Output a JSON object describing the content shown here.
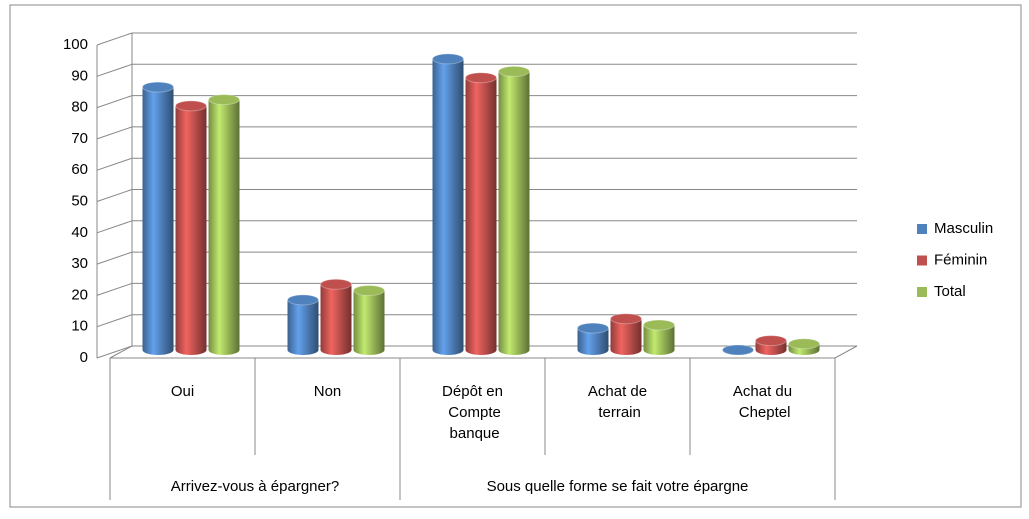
{
  "chart_data": {
    "type": "bar3d",
    "category_groups": [
      {
        "name": "Arrivez-vous à épargner?",
        "categories": [
          "Oui",
          "Non"
        ]
      },
      {
        "name": "Sous quelle forme se fait votre épargne",
        "categories": [
          "Dépôt en Compte banque",
          "Achat de terrain",
          "Achat du Cheptel"
        ]
      }
    ],
    "series": [
      {
        "name": "Masculin",
        "color": "#4f81bd",
        "values": [
          84,
          16,
          93,
          7,
          0
        ]
      },
      {
        "name": "Féminin",
        "color": "#c0504d",
        "values": [
          78,
          21,
          87,
          10,
          3
        ]
      },
      {
        "name": "Total",
        "color": "#9bbb59",
        "values": [
          80,
          19,
          89,
          8,
          2
        ]
      }
    ],
    "ylim": [
      0,
      100
    ],
    "yticks": [
      0,
      10,
      20,
      30,
      40,
      50,
      60,
      70,
      80,
      90,
      100
    ],
    "grid": true,
    "legend": "right"
  }
}
